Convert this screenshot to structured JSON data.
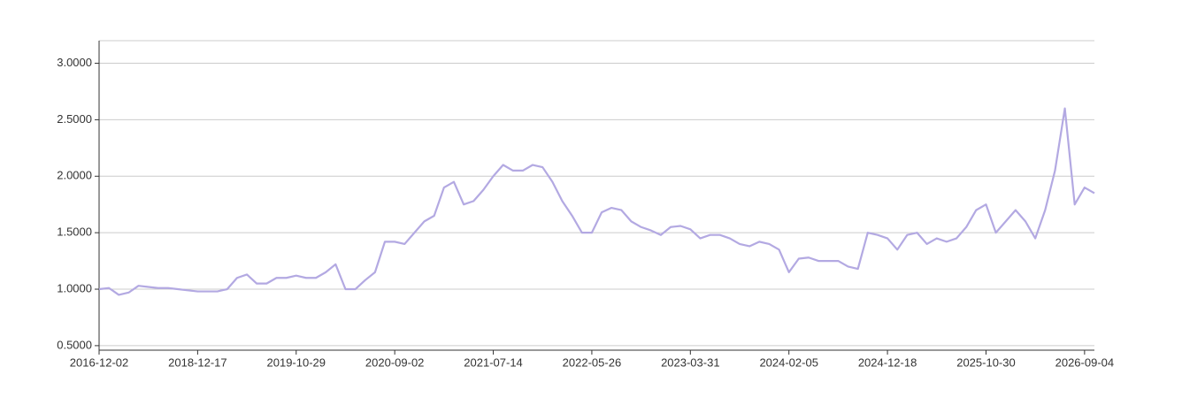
{
  "chart_data": {
    "type": "line",
    "categories": [
      "2016-12-02",
      null,
      null,
      null,
      null,
      null,
      null,
      null,
      null,
      null,
      "2018-12-17",
      null,
      null,
      null,
      null,
      null,
      null,
      null,
      null,
      null,
      "2019-10-29",
      null,
      null,
      null,
      null,
      null,
      null,
      null,
      null,
      null,
      "2020-09-02",
      null,
      null,
      null,
      null,
      null,
      null,
      null,
      null,
      null,
      "2021-07-14",
      null,
      null,
      null,
      null,
      null,
      null,
      null,
      null,
      null,
      "2022-05-26",
      null,
      null,
      null,
      null,
      null,
      null,
      null,
      null,
      null,
      "2023-03-31",
      null,
      null,
      null,
      null,
      null,
      null,
      null,
      null,
      null,
      "2024-02-05",
      null,
      null,
      null,
      null,
      null,
      null,
      null,
      null,
      null,
      "2024-12-18",
      null,
      null,
      null,
      null,
      null,
      null,
      null,
      null,
      null,
      "2025-10-30",
      null,
      null,
      null,
      null,
      null,
      null,
      null,
      null,
      null,
      "2026-09-04",
      null
    ],
    "values": [
      1.0,
      1.01,
      0.95,
      0.97,
      1.03,
      1.02,
      1.01,
      1.01,
      1.0,
      0.99,
      0.98,
      0.98,
      0.98,
      1.0,
      1.1,
      1.13,
      1.05,
      1.05,
      1.1,
      1.1,
      1.12,
      1.1,
      1.1,
      1.15,
      1.22,
      1.0,
      1.0,
      1.08,
      1.15,
      1.42,
      1.42,
      1.4,
      1.5,
      1.6,
      1.65,
      1.9,
      1.95,
      1.75,
      1.78,
      1.88,
      2.0,
      2.1,
      2.05,
      2.05,
      2.1,
      2.08,
      1.95,
      1.78,
      1.65,
      1.5,
      1.5,
      1.68,
      1.72,
      1.7,
      1.6,
      1.55,
      1.52,
      1.48,
      1.55,
      1.56,
      1.53,
      1.45,
      1.48,
      1.48,
      1.45,
      1.4,
      1.38,
      1.42,
      1.4,
      1.35,
      1.15,
      1.27,
      1.28,
      1.25,
      1.25,
      1.25,
      1.2,
      1.18,
      1.5,
      1.48,
      1.45,
      1.35,
      1.48,
      1.5,
      1.4,
      1.45,
      1.42,
      1.45,
      1.55,
      1.7,
      1.75,
      1.5,
      1.6,
      1.7,
      1.6,
      1.45,
      1.7,
      2.05,
      2.6,
      1.75,
      1.9,
      1.85
    ],
    "color": "#b3a9e2",
    "ylim": [
      0.46,
      3.2
    ],
    "yticks": [
      {
        "value": 0.5,
        "label": "0.5000"
      },
      {
        "value": 1,
        "label": "1.0000"
      },
      {
        "value": 1.5,
        "label": "1.5000"
      },
      {
        "value": 2,
        "label": "2.0000"
      },
      {
        "value": 2.5,
        "label": "2.5000"
      },
      {
        "value": 3,
        "label": "3.0000"
      }
    ],
    "grid": true
  }
}
